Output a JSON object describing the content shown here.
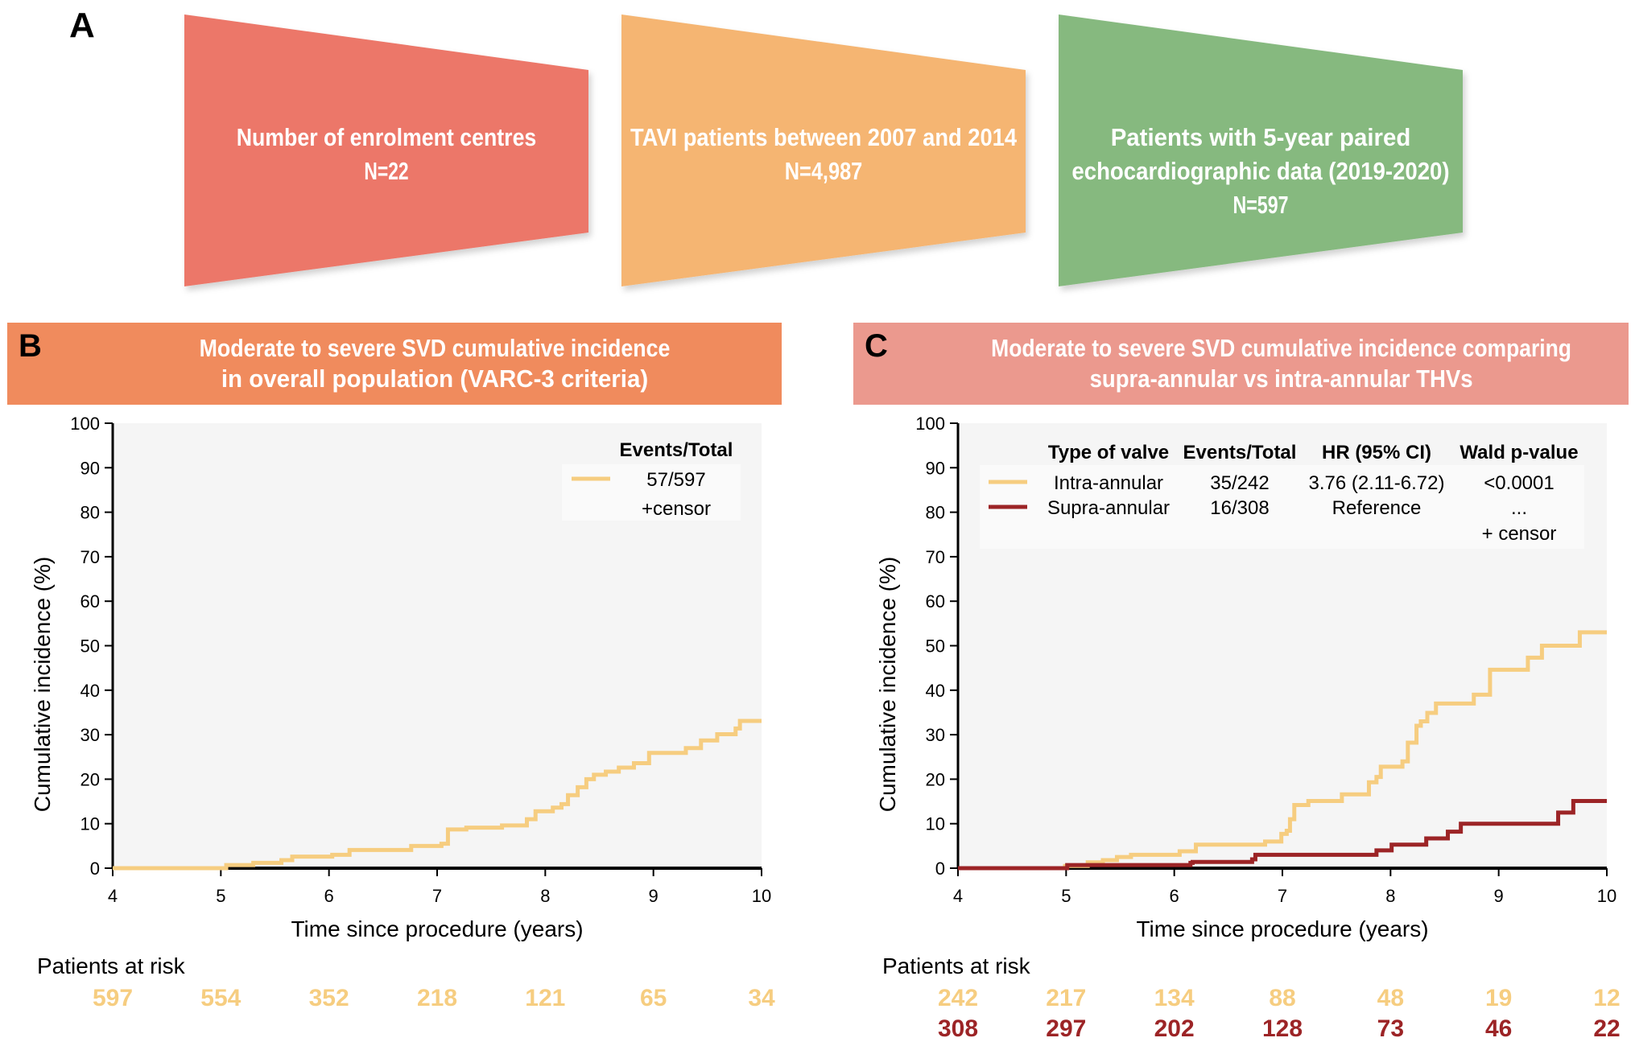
{
  "panel_a": {
    "label": "A",
    "boxes": [
      {
        "lines": [
          "Number of enrolment centres",
          "N=22"
        ],
        "color": "#ec7769"
      },
      {
        "lines": [
          "TAVI patients between 2007 and 2014",
          "N=4,987"
        ],
        "color": "#f5b572"
      },
      {
        "lines": [
          "Patients with 5-year paired",
          "echocardiographic data (2019-2020)",
          "N=597"
        ],
        "color": "#86b97f"
      }
    ]
  },
  "chart_data": [
    {
      "type": "line",
      "step": true,
      "panel_label": "B",
      "title": [
        "Moderate to severe SVD cumulative incidence",
        "in overall population (VARC-3 criteria)"
      ],
      "header_color": "#f08b5d",
      "xlabel": "Time since procedure (years)",
      "ylabel": "Cumulative incidence (%)",
      "xlim": [
        4,
        10
      ],
      "ylim": [
        0,
        100
      ],
      "xticks": [
        4,
        5,
        6,
        7,
        8,
        9,
        10
      ],
      "yticks": [
        0,
        10,
        20,
        30,
        40,
        50,
        60,
        70,
        80,
        90,
        100
      ],
      "grid": false,
      "legend": {
        "placement": "top-right",
        "header": "Events/Total",
        "entries": [
          {
            "label": "57/597",
            "color": "#f6cd80"
          }
        ],
        "censor": "+censor"
      },
      "series": [
        {
          "name": "Overall",
          "color": "#f6cd80",
          "x": [
            4.0,
            5.05,
            5.3,
            5.56,
            5.66,
            6.03,
            6.19,
            6.76,
            7.04,
            7.1,
            7.27,
            7.6,
            7.83,
            7.91,
            8.07,
            8.15,
            8.21,
            8.3,
            8.38,
            8.45,
            8.56,
            8.68,
            8.82,
            8.96,
            9.3,
            9.44,
            9.59,
            9.76,
            9.8,
            10.0
          ],
          "y": [
            0.0,
            0.7,
            1.2,
            1.8,
            2.6,
            3.0,
            4.1,
            5.0,
            5.5,
            8.7,
            9.1,
            9.6,
            11.0,
            12.8,
            13.6,
            14.4,
            16.4,
            18.2,
            20.0,
            21.0,
            21.7,
            22.6,
            23.6,
            25.9,
            27.0,
            28.7,
            30.1,
            31.4,
            33.1,
            33.1
          ]
        }
      ],
      "at_risk": {
        "title": "Patients at risk",
        "rows": [
          {
            "color": "#f6cd80",
            "values": [
              "597",
              "554",
              "352",
              "218",
              "121",
              "65",
              "34"
            ]
          }
        ]
      }
    },
    {
      "type": "line",
      "step": true,
      "panel_label": "C",
      "title": [
        "Moderate to severe SVD cumulative incidence comparing",
        "supra-annular vs intra-annular THVs"
      ],
      "header_color": "#eb998e",
      "xlabel": "Time since procedure (years)",
      "ylabel": "Cumulative incidence (%)",
      "xlim": [
        4,
        10
      ],
      "ylim": [
        0,
        100
      ],
      "xticks": [
        4,
        5,
        6,
        7,
        8,
        9,
        10
      ],
      "yticks": [
        0,
        10,
        20,
        30,
        40,
        50,
        60,
        70,
        80,
        90,
        100
      ],
      "grid": false,
      "legend": {
        "placement": "top",
        "headers": [
          "Type of valve",
          "Events/Total",
          "HR (95% CI)",
          "Wald p-value"
        ],
        "entries": [
          {
            "label": "Intra-annular",
            "events": "35/242",
            "hr": "3.76 (2.11-6.72)",
            "p": "<0.0001",
            "color": "#f6cd80"
          },
          {
            "label": "Supra-annular",
            "events": "16/308",
            "hr": "Reference",
            "p": "...",
            "color": "#9c2426"
          }
        ],
        "censor": "+ censor"
      },
      "series": [
        {
          "name": "Intra-annular",
          "color": "#f6cd80",
          "x": [
            4.0,
            4.99,
            5.2,
            5.34,
            5.47,
            5.6,
            6.05,
            6.2,
            6.84,
            6.99,
            7.04,
            7.07,
            7.11,
            7.24,
            7.55,
            7.8,
            7.87,
            7.91,
            8.11,
            8.16,
            8.24,
            8.28,
            8.34,
            8.42,
            8.77,
            8.92,
            9.27,
            9.4,
            9.75,
            10.0
          ],
          "y": [
            0.0,
            0.5,
            1.3,
            1.8,
            2.5,
            3.0,
            3.8,
            5.3,
            6.0,
            7.7,
            8.4,
            11.0,
            14.2,
            15.1,
            16.6,
            19.3,
            20.5,
            22.8,
            24.0,
            28.2,
            32.0,
            33.0,
            34.9,
            37.0,
            39.0,
            44.6,
            47.3,
            50.0,
            53.0,
            53.0
          ]
        },
        {
          "name": "Supra-annular",
          "color": "#9c2426",
          "x": [
            4.0,
            5.01,
            6.15,
            6.17,
            6.72,
            6.75,
            7.87,
            8.01,
            8.33,
            8.53,
            8.65,
            9.55,
            9.69,
            10.0
          ],
          "y": [
            0.0,
            0.7,
            1.2,
            1.4,
            2.0,
            3.0,
            4.0,
            5.3,
            6.7,
            8.2,
            10.0,
            12.5,
            15.1,
            15.1
          ]
        }
      ],
      "at_risk": {
        "title": "Patients at risk",
        "rows": [
          {
            "color": "#f6cd80",
            "values": [
              "242",
              "217",
              "134",
              "88",
              "48",
              "19",
              "12"
            ]
          },
          {
            "color": "#9c2426",
            "values": [
              "308",
              "297",
              "202",
              "128",
              "73",
              "46",
              "22"
            ]
          }
        ]
      }
    }
  ]
}
